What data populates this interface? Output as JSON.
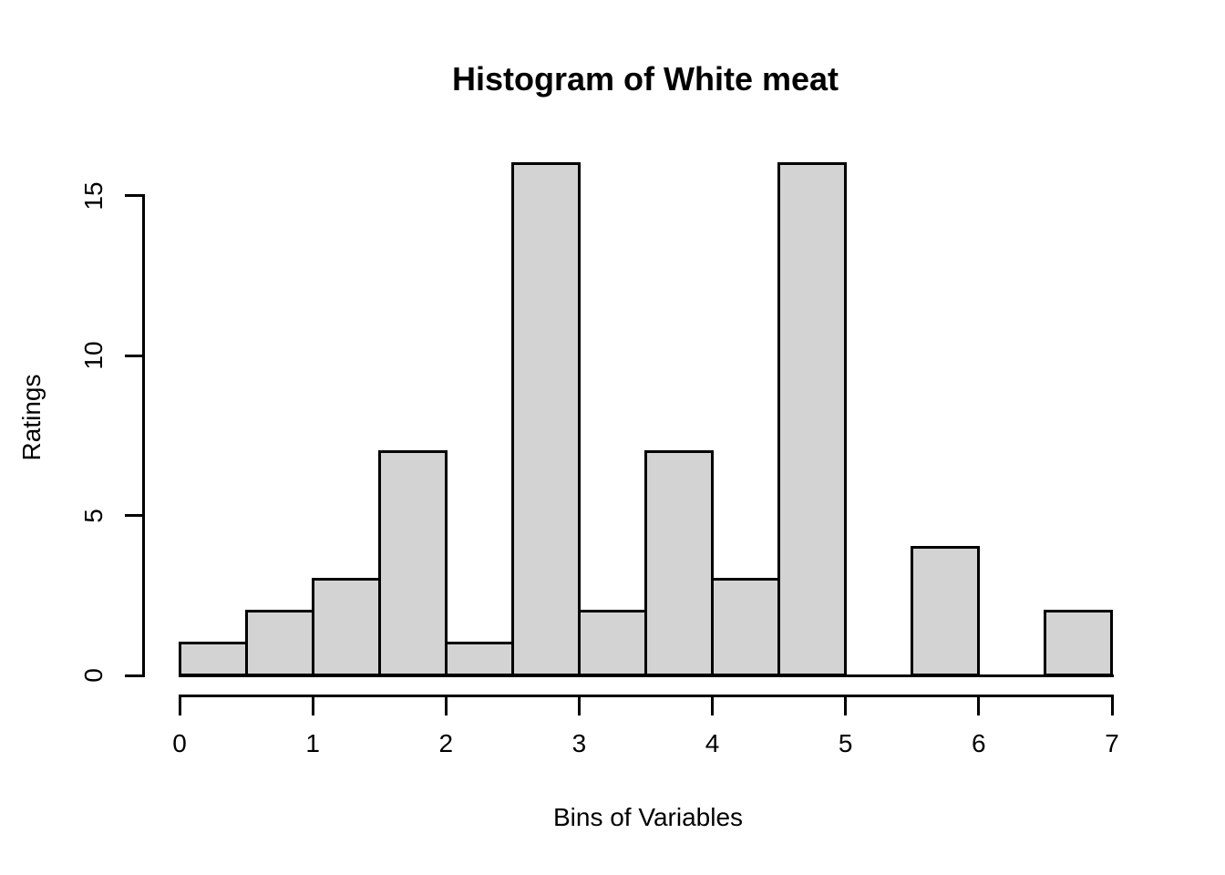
{
  "chart_data": {
    "type": "bar",
    "variant": "histogram",
    "title": "Histogram of White meat",
    "xlabel": "Bins of Variables",
    "ylabel": "Ratings",
    "bin_width": 0.5,
    "bin_edges": [
      0,
      0.5,
      1,
      1.5,
      2,
      2.5,
      3,
      3.5,
      4,
      4.5,
      5,
      5.5,
      6,
      6.5,
      7
    ],
    "counts": [
      1,
      2,
      3,
      7,
      1,
      16,
      2,
      7,
      3,
      16,
      0,
      4,
      0,
      2
    ],
    "x_ticks": [
      0,
      1,
      2,
      3,
      4,
      5,
      6,
      7
    ],
    "y_ticks": [
      0,
      5,
      10,
      15
    ],
    "xlim": [
      0,
      7
    ],
    "ylim": [
      0,
      16
    ],
    "grid": "off",
    "legend": "none",
    "colors": {
      "bar_fill": "#d3d3d3",
      "bar_border": "#000000",
      "axis": "#000000",
      "text": "#000000",
      "background": "#ffffff"
    }
  }
}
